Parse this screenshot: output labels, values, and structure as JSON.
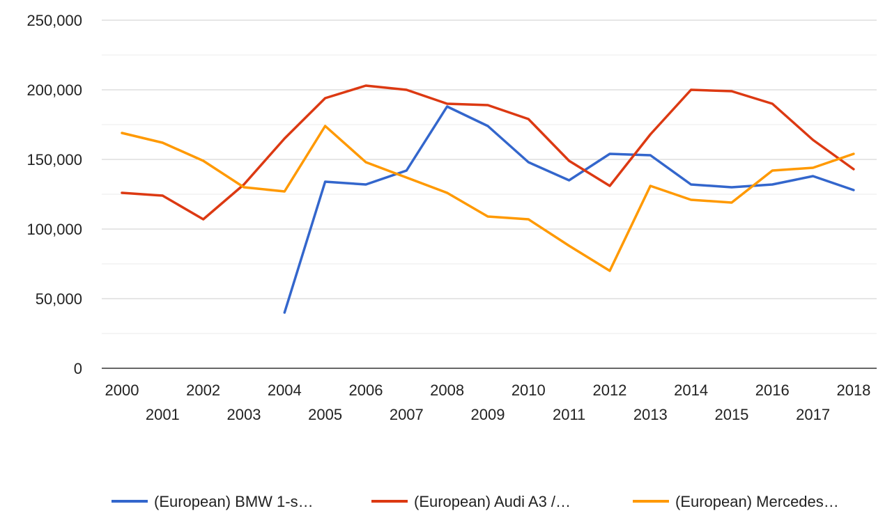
{
  "chart_data": {
    "type": "line",
    "title": "",
    "xlabel": "",
    "ylabel": "",
    "x": [
      2000,
      2001,
      2002,
      2003,
      2004,
      2005,
      2006,
      2007,
      2008,
      2009,
      2010,
      2011,
      2012,
      2013,
      2014,
      2015,
      2016,
      2017,
      2018
    ],
    "x_tick_labels": [
      "2000",
      "2001",
      "2002",
      "2003",
      "2004",
      "2005",
      "2006",
      "2007",
      "2008",
      "2009",
      "2010",
      "2011",
      "2012",
      "2013",
      "2014",
      "2015",
      "2016",
      "2017",
      "2018"
    ],
    "ylim": [
      0,
      250000
    ],
    "y_ticks": [
      0,
      50000,
      100000,
      150000,
      200000,
      250000
    ],
    "y_tick_labels": [
      "0",
      "50,000",
      "100,000",
      "150,000",
      "200,000",
      "250,000"
    ],
    "grid": true,
    "minor_grid": true,
    "legend_position": "bottom",
    "series": [
      {
        "name": "(European) BMW 1-s…",
        "color": "#3366cc",
        "values": [
          null,
          null,
          null,
          null,
          40000,
          134000,
          132000,
          142000,
          188000,
          174000,
          148000,
          135000,
          154000,
          153000,
          132000,
          130000,
          132000,
          138000,
          128000
        ]
      },
      {
        "name": "(European) Audi A3 /…",
        "color": "#dc3912",
        "values": [
          126000,
          124000,
          107000,
          132000,
          165000,
          194000,
          203000,
          200000,
          190000,
          189000,
          179000,
          149000,
          131000,
          168000,
          200000,
          199000,
          190000,
          164000,
          143000
        ]
      },
      {
        "name": "(European) Mercedes…",
        "color": "#ff9900",
        "values": [
          169000,
          162000,
          149000,
          130000,
          127000,
          174000,
          148000,
          137000,
          126000,
          109000,
          107000,
          88000,
          70000,
          131000,
          121000,
          119000,
          142000,
          144000,
          154000
        ]
      }
    ]
  }
}
